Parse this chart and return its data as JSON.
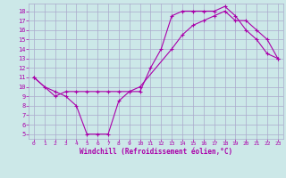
{
  "xlabel": "Windchill (Refroidissement éolien,°C)",
  "background_color": "#cce8e8",
  "grid_color": "#aaaacc",
  "line_color": "#aa00aa",
  "xlim": [
    -0.5,
    23.5
  ],
  "ylim": [
    4.5,
    18.8
  ],
  "xticks": [
    0,
    1,
    2,
    3,
    4,
    5,
    6,
    7,
    8,
    9,
    10,
    11,
    12,
    13,
    14,
    15,
    16,
    17,
    18,
    19,
    20,
    21,
    22,
    23
  ],
  "yticks": [
    5,
    6,
    7,
    8,
    9,
    10,
    11,
    12,
    13,
    14,
    15,
    16,
    17,
    18
  ],
  "line1_x": [
    0,
    1,
    2,
    3,
    4,
    5,
    6,
    7,
    8,
    9,
    10,
    11,
    12,
    13,
    14,
    15,
    16,
    17,
    18,
    19,
    20,
    21,
    22,
    23
  ],
  "line1_y": [
    11,
    10,
    9.5,
    9,
    8,
    5,
    5,
    5,
    8.5,
    9.5,
    9.5,
    12,
    14,
    17.5,
    18,
    18,
    18,
    18,
    18.5,
    17.5,
    16,
    15,
    13.5,
    13
  ],
  "line2_x": [
    0,
    2,
    3,
    4,
    5,
    6,
    7,
    8,
    9,
    10,
    13,
    14,
    15,
    16,
    17,
    18,
    19,
    20,
    21,
    22,
    23
  ],
  "line2_y": [
    11,
    9,
    9.5,
    9.5,
    9.5,
    9.5,
    9.5,
    9.5,
    9.5,
    10,
    14,
    15.5,
    16.5,
    17,
    17.5,
    18,
    17,
    17,
    16,
    15,
    13
  ]
}
